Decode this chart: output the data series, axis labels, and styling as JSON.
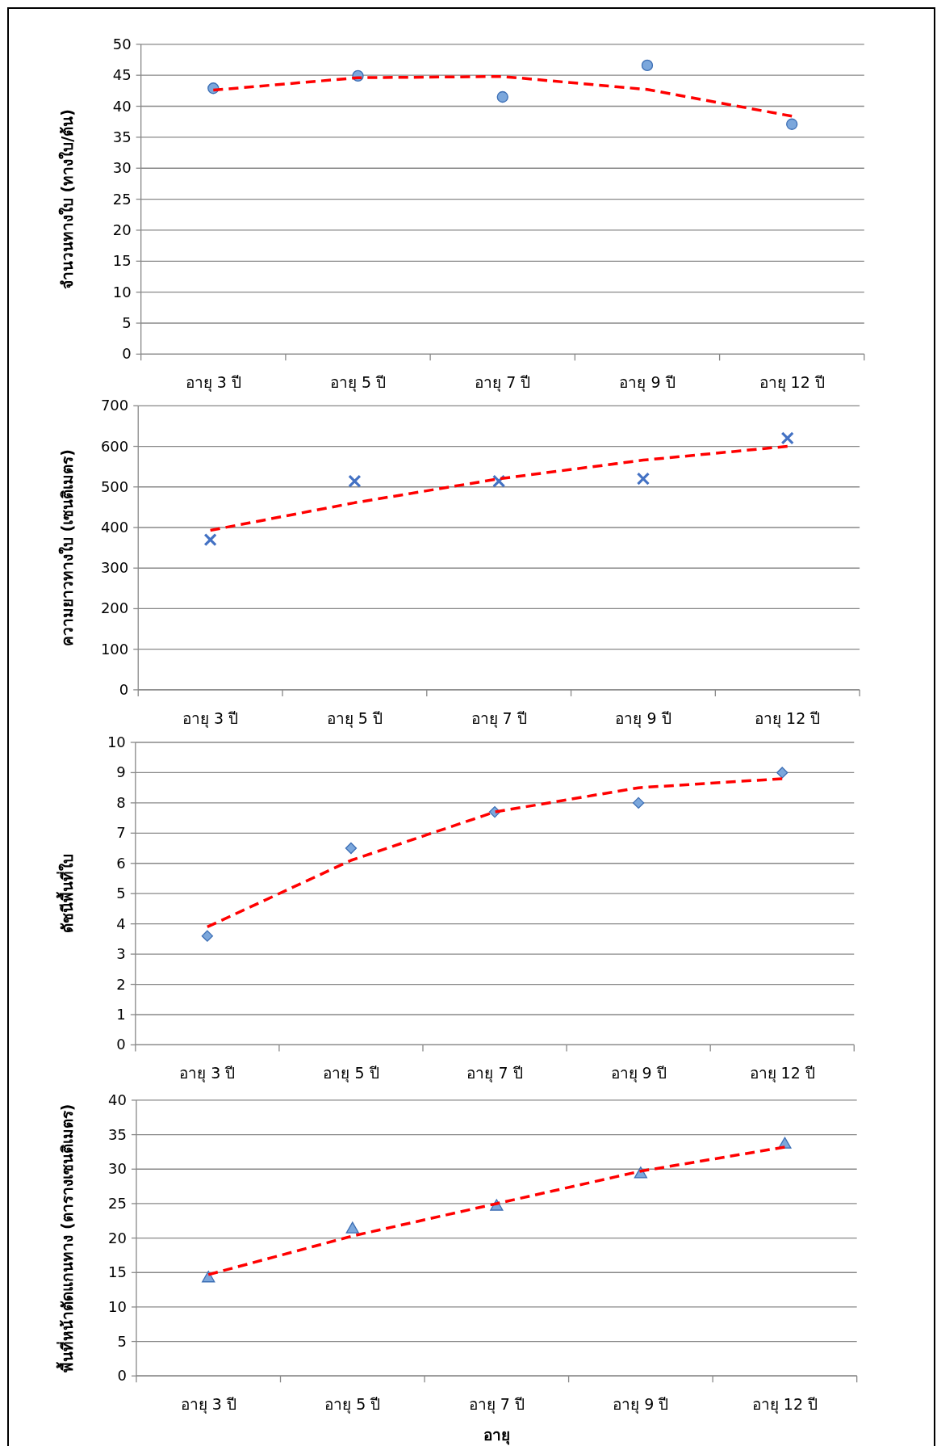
{
  "chart_data": [
    {
      "type": "scatter",
      "ylabel": "จำนวนทางใบ (ทางใบ/ต้น)",
      "categories": [
        "อายุ 3 ปี",
        "อายุ 5 ปี",
        "อายุ 7 ปี",
        "อายุ 9 ปี",
        "อายุ 12 ปี"
      ],
      "ylim": [
        0,
        50
      ],
      "yticks": [
        0,
        5,
        10,
        15,
        20,
        25,
        30,
        35,
        40,
        45,
        50
      ],
      "grid": "y",
      "series": [
        {
          "type": "scatter",
          "marker": "circle",
          "color": "#7ba7dc",
          "values": [
            42.9,
            44.9,
            41.5,
            46.6,
            37.1
          ]
        },
        {
          "type": "line",
          "line_style": "dashed",
          "color": "#ff0000",
          "values": [
            42.6,
            44.6,
            44.8,
            42.7,
            38.4
          ]
        }
      ]
    },
    {
      "type": "scatter",
      "ylabel": "ความยาวทางใบ (เซนติเมตร)",
      "categories": [
        "อายุ 3 ปี",
        "อายุ 5 ปี",
        "อายุ 7 ปี",
        "อายุ 9 ปี",
        "อายุ 12 ปี"
      ],
      "ylim": [
        0,
        700
      ],
      "yticks": [
        0,
        100,
        200,
        300,
        400,
        500,
        600,
        700
      ],
      "grid": "y",
      "series": [
        {
          "type": "scatter",
          "marker": "cross",
          "color": "#4472c4",
          "values": [
            370,
            514,
            514,
            520,
            620
          ]
        },
        {
          "type": "line",
          "line_style": "dashed",
          "color": "#ff0000",
          "values": [
            393,
            461,
            520,
            566,
            600
          ]
        }
      ]
    },
    {
      "type": "scatter",
      "ylabel": "ดัชนีพื้นที่ใบ",
      "categories": [
        "อายุ 3 ปี",
        "อายุ 5 ปี",
        "อายุ 7 ปี",
        "อายุ 9 ปี",
        "อายุ 12 ปี"
      ],
      "ylim": [
        0,
        10
      ],
      "yticks": [
        0,
        1,
        2,
        3,
        4,
        5,
        6,
        7,
        8,
        9,
        10
      ],
      "grid": "y",
      "series": [
        {
          "type": "scatter",
          "marker": "diamond",
          "color": "#7ba7dc",
          "values": [
            3.6,
            6.5,
            7.7,
            8.0,
            9.0
          ]
        },
        {
          "type": "line",
          "line_style": "dashed",
          "color": "#ff0000",
          "values": [
            3.9,
            6.1,
            7.7,
            8.5,
            8.8
          ]
        }
      ]
    },
    {
      "type": "scatter",
      "ylabel": "พื้นที่หน้าตัดแกนทาง (ตารางเซนติเมตร)",
      "xlabel": "อายุ",
      "categories": [
        "อายุ 3 ปี",
        "อายุ 5 ปี",
        "อายุ 7 ปี",
        "อายุ 9 ปี",
        "อายุ 12 ปี"
      ],
      "ylim": [
        0,
        40
      ],
      "yticks": [
        0,
        5,
        10,
        15,
        20,
        25,
        30,
        35,
        40
      ],
      "grid": "y",
      "series": [
        {
          "type": "scatter",
          "marker": "triangle",
          "color": "#7ba7dc",
          "values": [
            14.3,
            21.4,
            24.7,
            29.4,
            33.7
          ]
        },
        {
          "type": "line",
          "line_style": "dashed",
          "color": "#ff0000",
          "values": [
            14.7,
            20.3,
            25.0,
            29.7,
            33.2
          ]
        }
      ]
    }
  ]
}
